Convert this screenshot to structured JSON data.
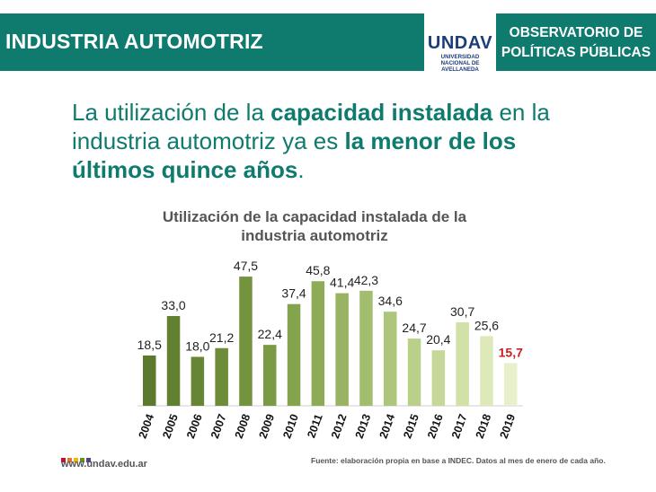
{
  "header": {
    "section_title": "INDUSTRIA AUTOMOTRIZ",
    "logo_text": "UNDAV",
    "logo_sub_line1": "UNIVERSIDAD",
    "logo_sub_line2": "NACIONAL DE",
    "logo_sub_line3": "AVELLANEDA",
    "observatory_line1": "OBSERVATORIO DE",
    "observatory_line2": "POLÍTICAS PÚBLICAS",
    "band_color": "#0f7a6e"
  },
  "headline": {
    "part1": "La utilización de la ",
    "bold1": "capacidad instalada",
    "part2": " en la industria automotriz ya es ",
    "bold2": "la menor de los últimos quince años",
    "part3": "."
  },
  "chart_data": {
    "type": "bar",
    "title_line1": "Utilización de la capacidad instalada de la",
    "title_line2": "industria automotriz",
    "categories": [
      "2004",
      "2005",
      "2006",
      "2007",
      "2008",
      "2009",
      "2010",
      "2011",
      "2012",
      "2013",
      "2014",
      "2015",
      "2016",
      "2017",
      "2018",
      "2019"
    ],
    "values": [
      18.5,
      33.0,
      18.0,
      21.2,
      47.5,
      22.4,
      37.4,
      45.8,
      41.4,
      42.3,
      34.6,
      24.7,
      20.4,
      30.7,
      25.6,
      15.7
    ],
    "value_labels": [
      "18,5",
      "33,0",
      "18,0",
      "21,2",
      "47,5",
      "22,4",
      "37,4",
      "45,8",
      "41,4",
      "42,3",
      "34,6",
      "24,7",
      "20,4",
      "30,7",
      "25,6",
      "15,7"
    ],
    "bar_colors": [
      "#5c7a2e",
      "#618032",
      "#668636",
      "#6c8c3a",
      "#73933f",
      "#7b9a45",
      "#84a34d",
      "#8eac57",
      "#98b462",
      "#a3bd6e",
      "#aec67b",
      "#bacf89",
      "#c6d898",
      "#d2e1a8",
      "#dee9b9",
      "#e8f0cb"
    ],
    "highlight_index": 15,
    "highlight_color": "#cc1f1f",
    "label_color": "#222222",
    "ylim": [
      0,
      50
    ],
    "grid": false
  },
  "footer": {
    "website": "www.undav.edu.ar",
    "source": "Fuente: elaboración propia en base a INDEC. Datos al mes de enero de cada año.",
    "dot_colors": [
      "#c8102e",
      "#e8742a",
      "#f2b705",
      "#6b8e23",
      "#5a3e8a"
    ]
  }
}
